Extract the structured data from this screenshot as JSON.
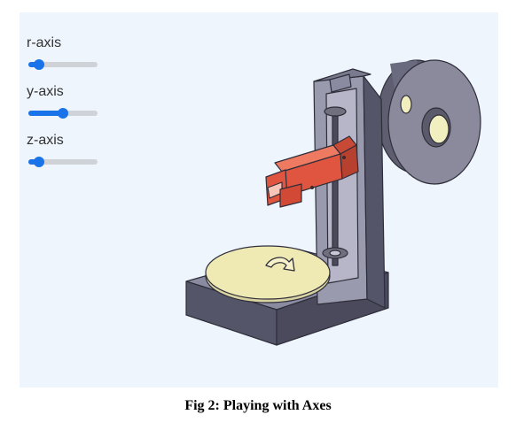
{
  "sliders": [
    {
      "label": "r-axis",
      "value": 0.15
    },
    {
      "label": "y-axis",
      "value": 0.5
    },
    {
      "label": "z-axis",
      "value": 0.15
    }
  ],
  "caption": "Fig 2: Playing with Axes",
  "colors": {
    "accent": "#1a73e8",
    "panel_bg": "#eef5fd",
    "machine_body": "#6a6a7e",
    "carriage": "#e0553f",
    "turntable": "#efe9b3"
  },
  "icons": {
    "turntable_arrow": "rotate-arrow-icon"
  }
}
